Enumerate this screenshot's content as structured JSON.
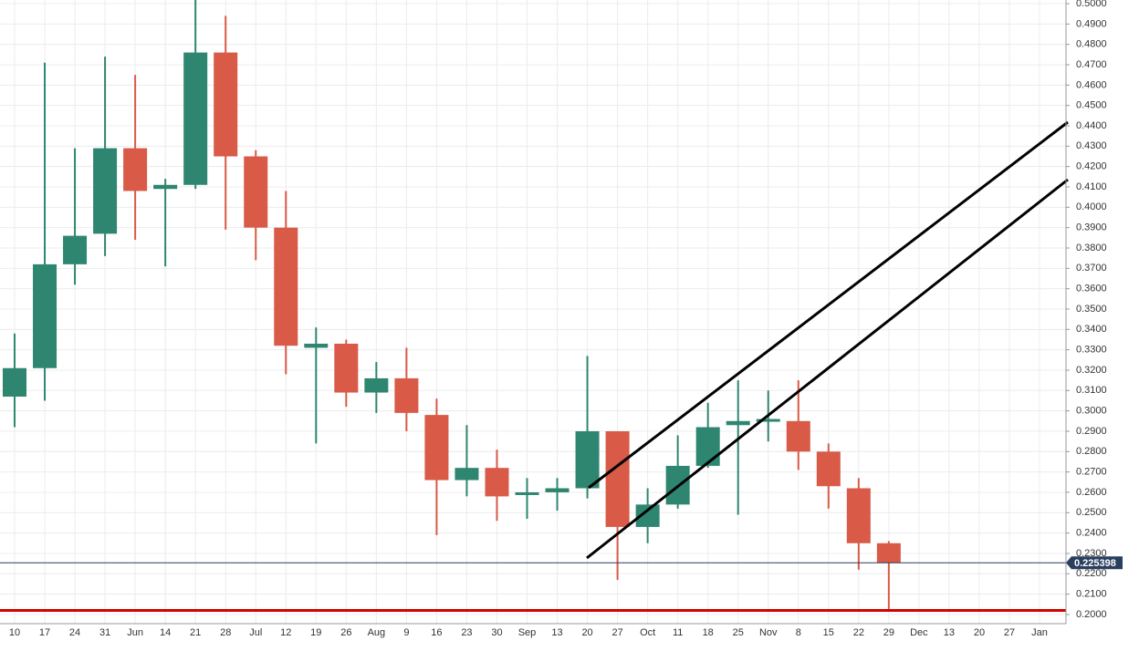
{
  "chart_data": {
    "type": "candlestick",
    "categories": [
      "10",
      "17",
      "24",
      "31",
      "Jun",
      "14",
      "21",
      "28",
      "Jul",
      "12",
      "19",
      "26",
      "Aug",
      "9",
      "16",
      "23",
      "30",
      "Sep",
      "13",
      "20",
      "27",
      "Oct",
      "11",
      "18",
      "25",
      "Nov",
      "8",
      "15",
      "22",
      "29",
      "Dec",
      "13",
      "20",
      "27",
      "Jan"
    ],
    "open": [
      0.307,
      0.321,
      0.372,
      0.387,
      0.429,
      0.409,
      0.411,
      0.476,
      0.425,
      0.39,
      0.331,
      0.333,
      0.309,
      0.316,
      0.298,
      0.266,
      0.272,
      0.259,
      0.26,
      0.262,
      0.29,
      0.243,
      0.254,
      0.273,
      0.293,
      0.295,
      0.295,
      0.28,
      0.262,
      0.235,
      null,
      null,
      null,
      null,
      null
    ],
    "high": [
      0.338,
      0.471,
      0.429,
      0.474,
      0.465,
      0.414,
      0.502,
      0.494,
      0.428,
      0.408,
      0.341,
      0.335,
      0.324,
      0.331,
      0.306,
      0.293,
      0.281,
      0.267,
      0.267,
      0.327,
      0.29,
      0.262,
      0.288,
      0.304,
      0.315,
      0.31,
      0.315,
      0.284,
      0.267,
      0.236,
      null,
      null,
      null,
      null,
      null
    ],
    "low": [
      0.292,
      0.305,
      0.362,
      0.376,
      0.384,
      0.371,
      0.409,
      0.389,
      0.374,
      0.318,
      0.284,
      0.302,
      0.299,
      0.29,
      0.239,
      0.258,
      0.246,
      0.247,
      0.251,
      0.257,
      0.217,
      0.235,
      0.252,
      0.272,
      0.249,
      0.285,
      0.271,
      0.252,
      0.222,
      0.202,
      null,
      null,
      null,
      null,
      null
    ],
    "close": [
      0.321,
      0.372,
      0.386,
      0.429,
      0.408,
      0.411,
      0.476,
      0.425,
      0.39,
      0.332,
      0.333,
      0.309,
      0.316,
      0.299,
      0.266,
      0.272,
      0.258,
      0.26,
      0.262,
      0.29,
      0.243,
      0.254,
      0.273,
      0.292,
      0.295,
      0.296,
      0.28,
      0.263,
      0.235,
      0.2254,
      null,
      null,
      null,
      null,
      null
    ],
    "up_color": "#2e8670",
    "down_color": "#d85a47",
    "ylim": [
      0.1955,
      0.5018
    ],
    "yticks": [
      {
        "value": 0.2,
        "label": "0.2000"
      },
      {
        "value": 0.21,
        "label": "0.2100"
      },
      {
        "value": 0.22,
        "label": "0.2200"
      },
      {
        "value": 0.23,
        "label": "0.2300"
      },
      {
        "value": 0.24,
        "label": "0.2400"
      },
      {
        "value": 0.25,
        "label": "0.2500"
      },
      {
        "value": 0.26,
        "label": "0.2600"
      },
      {
        "value": 0.27,
        "label": "0.2700"
      },
      {
        "value": 0.28,
        "label": "0.2800"
      },
      {
        "value": 0.29,
        "label": "0.2900"
      },
      {
        "value": 0.3,
        "label": "0.3000"
      },
      {
        "value": 0.31,
        "label": "0.3100"
      },
      {
        "value": 0.32,
        "label": "0.3200"
      },
      {
        "value": 0.33,
        "label": "0.3300"
      },
      {
        "value": 0.34,
        "label": "0.3400"
      },
      {
        "value": 0.35,
        "label": "0.3500"
      },
      {
        "value": 0.36,
        "label": "0.3600"
      },
      {
        "value": 0.37,
        "label": "0.3700"
      },
      {
        "value": 0.38,
        "label": "0.3800"
      },
      {
        "value": 0.39,
        "label": "0.3900"
      },
      {
        "value": 0.4,
        "label": "0.4000"
      },
      {
        "value": 0.41,
        "label": "0.4100"
      },
      {
        "value": 0.42,
        "label": "0.4200"
      },
      {
        "value": 0.43,
        "label": "0.4300"
      },
      {
        "value": 0.44,
        "label": "0.4400"
      },
      {
        "value": 0.45,
        "label": "0.4500"
      },
      {
        "value": 0.46,
        "label": "0.4600"
      },
      {
        "value": 0.47,
        "label": "0.4700"
      },
      {
        "value": 0.48,
        "label": "0.4800"
      },
      {
        "value": 0.49,
        "label": "0.4900"
      },
      {
        "value": 0.5,
        "label": "0.5000"
      }
    ],
    "grid": true,
    "last_price": 0.225398,
    "last_price_color": "#2a3f5f",
    "support_level": 0.202,
    "support_color": "#d40000"
  }
}
